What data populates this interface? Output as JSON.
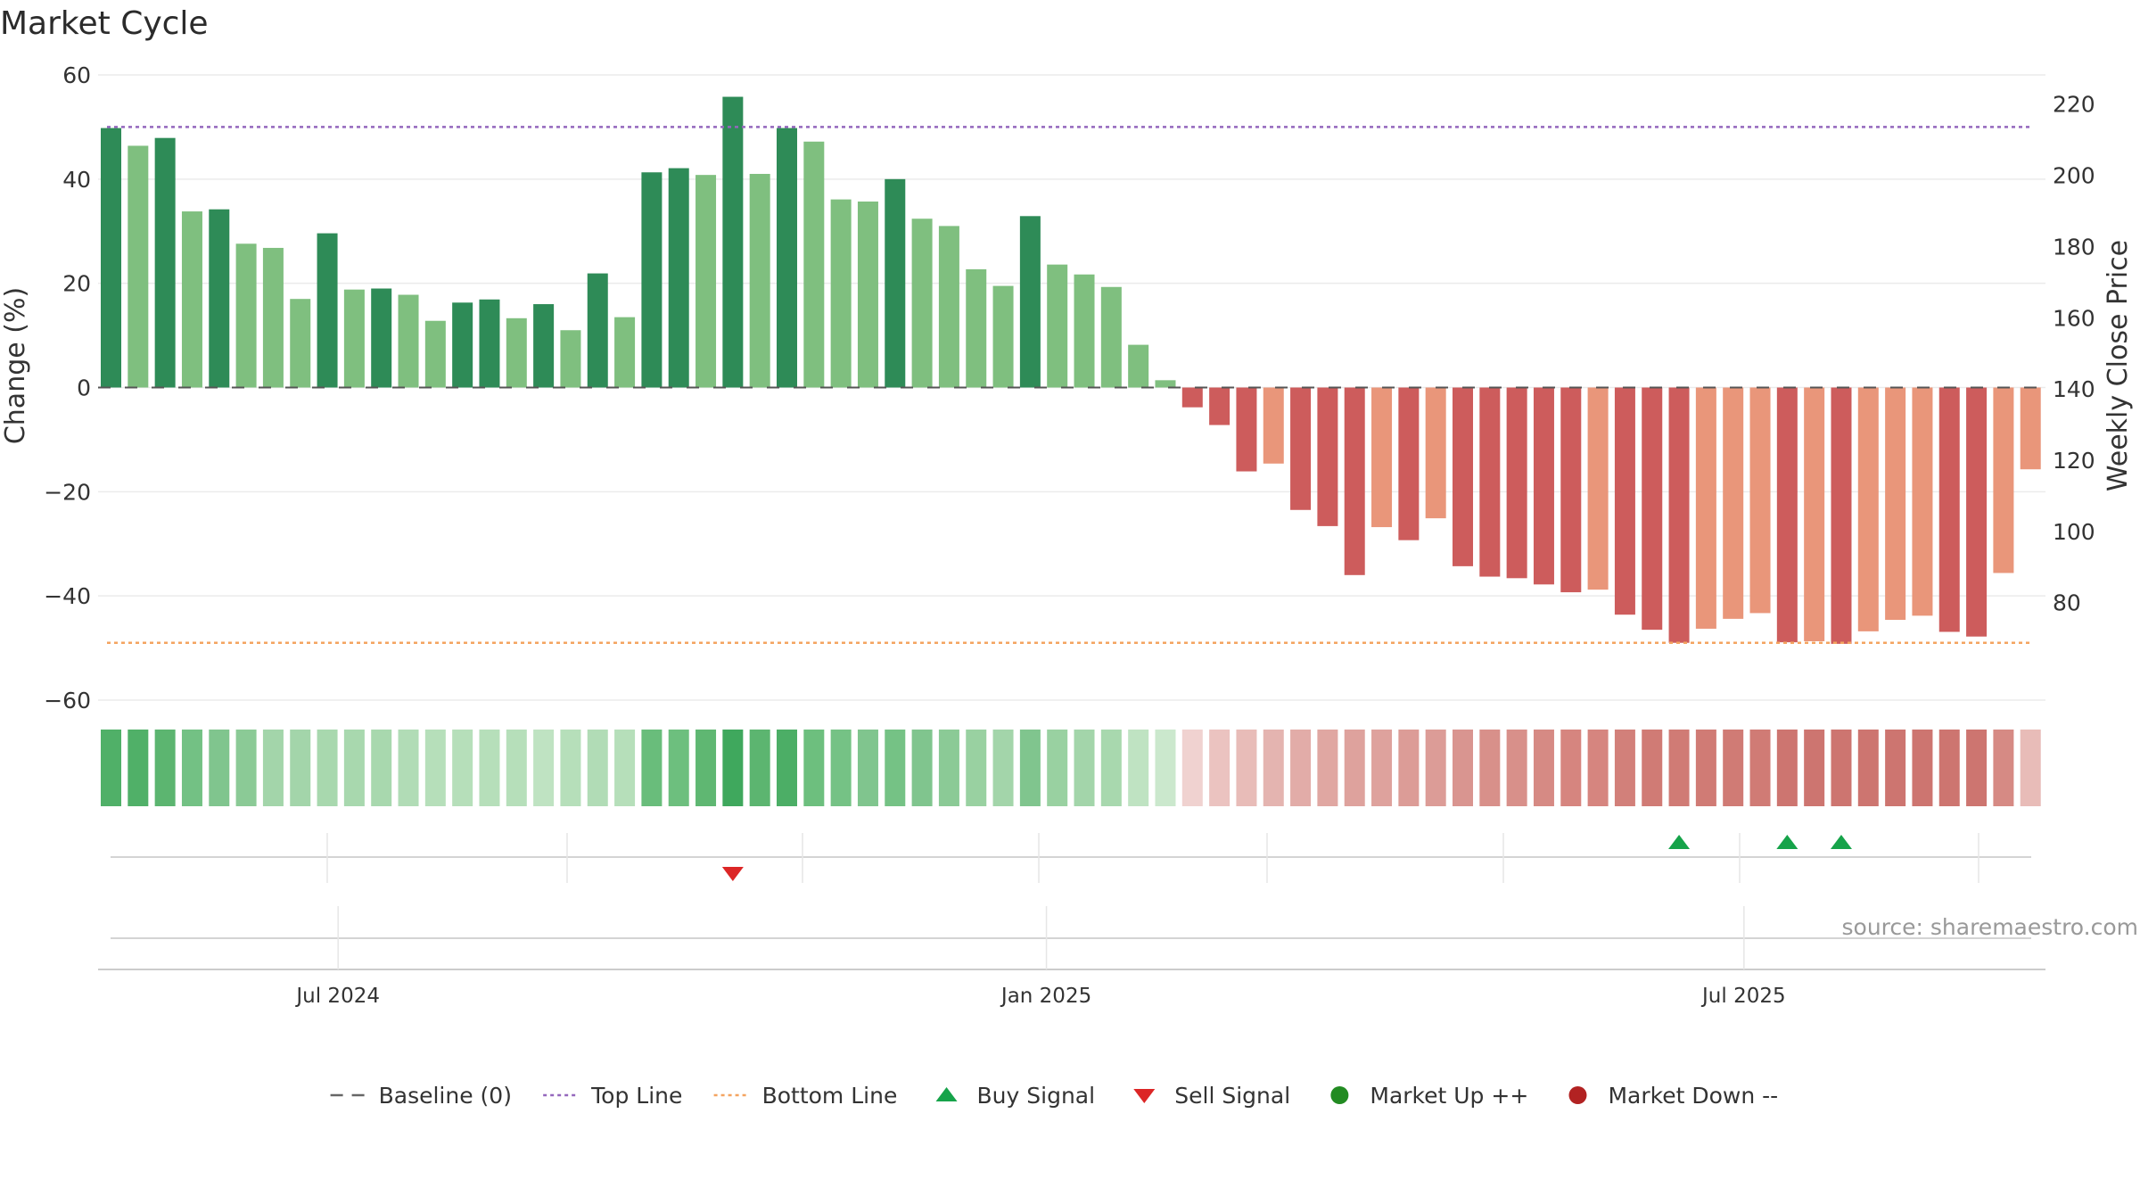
{
  "chart_data": {
    "type": "bar",
    "title": "Market Cycle",
    "ylabel": "Change (%)",
    "y2label": "Weekly Close Price",
    "ylim": [
      -60,
      60
    ],
    "yticks": [
      60,
      40,
      20,
      0,
      -20,
      -40,
      -60
    ],
    "ytick_labels": [
      "60",
      "40",
      "20",
      "0",
      "−20",
      "−40",
      "−60"
    ],
    "y2lim": [
      52.6,
      228.2
    ],
    "y2ticks": [
      80,
      100,
      120,
      140,
      160,
      180,
      200,
      220
    ],
    "x_ticks": [
      {
        "label": "Jul 2024",
        "week": 8.4
      },
      {
        "label": "Jan 2025",
        "week": 34.6
      },
      {
        "label": "Jul 2025",
        "week": 60.4
      }
    ],
    "grid": true,
    "legend_position": "bottom-center",
    "top_line": 50,
    "bottom_line": -49,
    "source": "source: sharemaestro.com",
    "values": [
      49.8,
      46.4,
      47.9,
      33.8,
      34.2,
      27.6,
      26.8,
      17.0,
      29.6,
      18.8,
      19.0,
      17.8,
      12.8,
      16.3,
      16.9,
      13.3,
      16.0,
      11.0,
      21.9,
      13.5,
      41.3,
      42.1,
      40.8,
      55.8,
      41.0,
      49.8,
      47.2,
      36.1,
      35.7,
      40.0,
      32.4,
      31.0,
      22.7,
      19.5,
      32.9,
      23.6,
      21.7,
      19.3,
      8.2,
      1.4,
      -3.8,
      -7.2,
      -16.1,
      -14.6,
      -23.5,
      -26.6,
      -36.0,
      -26.8,
      -29.3,
      -25.1,
      -34.3,
      -36.3,
      -36.6,
      -37.8,
      -39.3,
      -38.8,
      -43.6,
      -46.5,
      -49.0,
      -46.3,
      -44.4,
      -43.3,
      -48.9,
      -48.7,
      -49.2,
      -46.8,
      -44.6,
      -43.8,
      -46.9,
      -47.8,
      -35.6,
      -15.7
    ],
    "bar_colors": [
      "#2e8b57",
      "#7fbf7f",
      "#2e8b57",
      "#7fbf7f",
      "#2e8b57",
      "#7fbf7f",
      "#7fbf7f",
      "#7fbf7f",
      "#2e8b57",
      "#7fbf7f",
      "#2e8b57",
      "#7fbf7f",
      "#7fbf7f",
      "#2e8b57",
      "#2e8b57",
      "#7fbf7f",
      "#2e8b57",
      "#7fbf7f",
      "#2e8b57",
      "#7fbf7f",
      "#2e8b57",
      "#2e8b57",
      "#7fbf7f",
      "#2e8b57",
      "#7fbf7f",
      "#2e8b57",
      "#7fbf7f",
      "#7fbf7f",
      "#7fbf7f",
      "#2e8b57",
      "#7fbf7f",
      "#7fbf7f",
      "#7fbf7f",
      "#7fbf7f",
      "#2e8b57",
      "#7fbf7f",
      "#7fbf7f",
      "#7fbf7f",
      "#7fbf7f",
      "#7fbf7f",
      "#cd5c5c",
      "#cd5c5c",
      "#cd5c5c",
      "#e9967a",
      "#cd5c5c",
      "#cd5c5c",
      "#cd5c5c",
      "#e9967a",
      "#cd5c5c",
      "#e9967a",
      "#cd5c5c",
      "#cd5c5c",
      "#cd5c5c",
      "#cd5c5c",
      "#cd5c5c",
      "#e9967a",
      "#cd5c5c",
      "#cd5c5c",
      "#cd5c5c",
      "#e9967a",
      "#e9967a",
      "#e9967a",
      "#cd5c5c",
      "#e9967a",
      "#cd5c5c",
      "#e9967a",
      "#e9967a",
      "#e9967a",
      "#cd5c5c",
      "#cd5c5c",
      "#e9967a",
      "#e9967a"
    ],
    "strip_colors": [
      "#50b068",
      "#50b068",
      "#5cb570",
      "#73c184",
      "#80c58e",
      "#8bca96",
      "#a3d5aa",
      "#a3d5aa",
      "#a8d8ae",
      "#a8d8ae",
      "#a8d8ae",
      "#b1dcb6",
      "#b6dfba",
      "#b6dfba",
      "#b6dfba",
      "#b6dfba",
      "#bfe3c2",
      "#b6dfba",
      "#b1dcb6",
      "#b6dfba",
      "#69bd7b",
      "#6dbf7e",
      "#5fb772",
      "#3fa85d",
      "#5cb570",
      "#4cae66",
      "#6dbf7e",
      "#75c285",
      "#80c58e",
      "#75c285",
      "#80c58e",
      "#8bca96",
      "#99d1a1",
      "#a3d5aa",
      "#80c58e",
      "#99d1a1",
      "#a3d5aa",
      "#a8d8ae",
      "#bfe3c2",
      "#cbe8cd",
      "#f0d2d0",
      "#ebc3c0",
      "#e8bcb8",
      "#e4b4b0",
      "#e2aca8",
      "#e0a7a2",
      "#dea29d",
      "#dea29d",
      "#dc9c97",
      "#dc9c97",
      "#d99590",
      "#d8908a",
      "#d8908a",
      "#d68a84",
      "#d6857f",
      "#d6857f",
      "#d2807a",
      "#d07b75",
      "#d07b75",
      "#d07b75",
      "#d07b75",
      "#d07b75",
      "#cd7570",
      "#cd7570",
      "#cd7570",
      "#cd7570",
      "#cd7570",
      "#cd7570",
      "#cd7570",
      "#cd7570",
      "#d68a84",
      "#e8bcb8"
    ],
    "signals": [
      {
        "type": "sell",
        "week": 23
      },
      {
        "type": "buy",
        "week": 58
      },
      {
        "type": "buy",
        "week": 62
      },
      {
        "type": "buy",
        "week": 64
      }
    ],
    "legend": [
      {
        "label": "Baseline (0)",
        "style": "dash",
        "color": "#666666"
      },
      {
        "label": "Top Line",
        "style": "dot",
        "color": "#9467bd"
      },
      {
        "label": "Bottom Line",
        "style": "dot",
        "color": "#f4a460"
      },
      {
        "label": "Buy Signal",
        "style": "triangle-up",
        "color": "#16a34a"
      },
      {
        "label": "Sell Signal",
        "style": "triangle-down",
        "color": "#dc2626"
      },
      {
        "label": "Market Up ++",
        "style": "circle",
        "color": "#228b22"
      },
      {
        "label": "Market Down --",
        "style": "circle",
        "color": "#b22222"
      }
    ]
  }
}
